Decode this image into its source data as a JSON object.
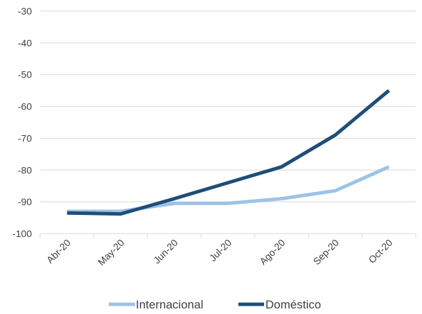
{
  "chart_data": {
    "type": "line",
    "title": "",
    "xlabel": "",
    "ylabel": "",
    "categories": [
      "Abr-20",
      "May-20",
      "Jun-20",
      "Jul-20",
      "Ago-20",
      "Sep-20",
      "Oct-20"
    ],
    "series": [
      {
        "name": "Internacional",
        "color": "#9dc3e6",
        "values": [
          -93,
          -93,
          -90.5,
          -90.5,
          -89,
          -86.5,
          -79
        ]
      },
      {
        "name": "Doméstico",
        "color": "#1f4e79",
        "values": [
          -93.5,
          -93.8,
          -89,
          -84,
          -79,
          -69,
          -55
        ]
      }
    ],
    "ylim": [
      -100,
      -30
    ],
    "yticks": [
      -100,
      -90,
      -80,
      -70,
      -60,
      -50,
      -40,
      -30
    ],
    "ytick_labels": [
      "-100",
      "-90",
      "-80",
      "-70",
      "-60",
      "-50",
      "-40",
      "-30"
    ],
    "grid": true,
    "legend_position": "bottom"
  }
}
